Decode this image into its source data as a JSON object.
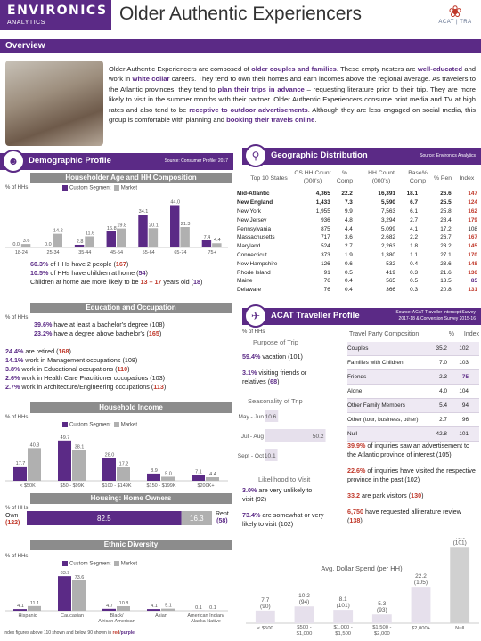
{
  "header": {
    "logo_line1": "ENVIRONICS",
    "logo_line2": "ANALYTICS",
    "title": "Older Authentic Experiencers",
    "acat_logo": "ACAT | TRA"
  },
  "overview": {
    "bar_label": "Overview",
    "text_parts": [
      {
        "t": "Older Authentic Experiencers are composed of ",
        "h": false
      },
      {
        "t": "older couples and families",
        "h": true
      },
      {
        "t": ". These empty nesters are ",
        "h": false
      },
      {
        "t": "well-educated",
        "h": true
      },
      {
        "t": " and work in ",
        "h": false
      },
      {
        "t": "white collar",
        "h": true
      },
      {
        "t": " careers. They tend to own their homes and earn incomes above the regional average. As travelers to the Atlantic provinces, they tend to ",
        "h": false
      },
      {
        "t": "plan their trips in advance",
        "h": true
      },
      {
        "t": " – requesting literature prior to their trip. They are more likely to visit in the summer months with their partner. Older Authentic Experiencers consume print media and TV at high rates and also tend to be ",
        "h": false
      },
      {
        "t": "receptive to outdoor advertisements",
        "h": true
      },
      {
        "t": ". Although they are less engaged on social media, this group is comfortable with planning and ",
        "h": false
      },
      {
        "t": "booking their travels online",
        "h": true
      },
      {
        "t": ".",
        "h": false
      }
    ]
  },
  "demographic": {
    "title": "Demographic Profile",
    "source": "Source: Consumer Profiler 2017",
    "age_head": "Householder Age and HH Composition",
    "ylabel": "% of HHs",
    "legend": [
      "Custom Segment",
      "Market"
    ],
    "hh_stats": [
      {
        "pct": "60.3%",
        "text": " of HHs have 2 people (",
        "idx": "167",
        "end": ")"
      },
      {
        "pct": "10.5%",
        "text": " of HHs have children at home (",
        "idx": "54",
        "end": ")"
      },
      {
        "pct": "",
        "text": "Children at home are more likely to be ",
        "idx": "13 – 17",
        "end": " years old (",
        "idx2": "18",
        "end2": ")"
      }
    ],
    "edu_head": "Education and Occupation",
    "edu_ylabel": "% of HHs",
    "edu_stats": [
      {
        "pct": "39.6%",
        "text": " have at least a bachelor's degree (108)"
      },
      {
        "pct": "23.2%",
        "text": " have a degree above bachelor's (",
        "idx": "165",
        "end": ")"
      }
    ],
    "occ_stats": [
      {
        "pct": "24.4%",
        "text": " are retired (",
        "idx": "168",
        "end": ")"
      },
      {
        "pct": "14.1%",
        "text": " work in Management occupations (108)"
      },
      {
        "pct": "3.8%",
        "text": " work in Educational occupations (",
        "idx": "110",
        "end": ")"
      },
      {
        "pct": "2.6%",
        "text": " work in Health Care Practitioner occupations (103)"
      },
      {
        "pct": "2.7%",
        "text": " work in Architecture/Engineering occupations (",
        "idx": "113",
        "end": ")"
      }
    ],
    "income_head": "Household Income",
    "income_ylabel": "% of HHs",
    "housing_head": "Housing: Home Owners",
    "housing_ylabel": "% of HHs",
    "own_label": "Own",
    "own_idx": "(122)",
    "rent_label": "Rent",
    "rent_idx": "(58)",
    "own_value": "82.5",
    "rent_value": "16.3",
    "ethnic_head": "Ethnic Diversity",
    "ethnic_ylabel": "% of HHs",
    "footnote": "Index figures above 110 shown and below 90 shown in ",
    "footnote_red": "red",
    "footnote_purple": "purple"
  },
  "geo": {
    "title": "Geographic Distribution",
    "source": "Source: Environics Analytics",
    "col_top": "Top 10 States",
    "col_cs": "CS HH Count (000's)",
    "col_pct": "% Comp",
    "col_hh": "HH Count (000's)",
    "col_base": "Base% Comp",
    "col_pen": "% Pen",
    "col_index": "Index",
    "rows": [
      {
        "name": "Mid-Atlantic",
        "cs": "4,365",
        "pct": "22.2",
        "hh": "16,391",
        "base": "18.1",
        "pen": "26.6",
        "index": "147",
        "bold": true
      },
      {
        "name": "New England",
        "cs": "1,433",
        "pct": "7.3",
        "hh": "5,590",
        "base": "6.7",
        "pen": "25.5",
        "index": "124",
        "bold": true
      },
      {
        "name": "New York",
        "cs": "1,955",
        "pct": "9.9",
        "hh": "7,563",
        "base": "6.1",
        "pen": "25.8",
        "index": "162",
        "bold": false
      },
      {
        "name": "New Jersey",
        "cs": "936",
        "pct": "4.8",
        "hh": "3,294",
        "base": "2.7",
        "pen": "28.4",
        "index": "179",
        "bold": false
      },
      {
        "name": "Pennsylvania",
        "cs": "875",
        "pct": "4.4",
        "hh": "5,099",
        "base": "4.1",
        "pen": "17.2",
        "index": "108",
        "bold": false
      },
      {
        "name": "Massachusetts",
        "cs": "717",
        "pct": "3.6",
        "hh": "2,682",
        "base": "2.2",
        "pen": "26.7",
        "index": "167",
        "bold": false
      },
      {
        "name": "Maryland",
        "cs": "524",
        "pct": "2.7",
        "hh": "2,263",
        "base": "1.8",
        "pen": "23.2",
        "index": "145",
        "bold": false
      },
      {
        "name": "Connecticut",
        "cs": "373",
        "pct": "1.9",
        "hh": "1,380",
        "base": "1.1",
        "pen": "27.1",
        "index": "170",
        "bold": false
      },
      {
        "name": "New Hampshire",
        "cs": "126",
        "pct": "0.6",
        "hh": "532",
        "base": "0.4",
        "pen": "23.6",
        "index": "148",
        "bold": false
      },
      {
        "name": "Rhode Island",
        "cs": "91",
        "pct": "0.5",
        "hh": "419",
        "base": "0.3",
        "pen": "21.6",
        "index": "136",
        "bold": false
      },
      {
        "name": "Maine",
        "cs": "76",
        "pct": "0.4",
        "hh": "565",
        "base": "0.5",
        "pen": "13.5",
        "index": "85",
        "bold": false
      },
      {
        "name": "Delaware",
        "cs": "76",
        "pct": "0.4",
        "hh": "366",
        "cs2": "",
        "base": "0.3",
        "pen": "20.8",
        "index": "131",
        "bold": false
      }
    ]
  },
  "acat": {
    "title": "ACAT Traveller Profile",
    "source_l1": "Source: ACAT Traveller Intercept Survey",
    "source_l2": "2017-18 & Conversion Survey 2015-16",
    "ylabel": "% of HHs",
    "purpose_head": "Purpose of Trip",
    "purpose_stats": [
      {
        "pct": "59.4%",
        "text": " vacation (101)"
      },
      {
        "pct": "3.1%",
        "text": " visiting friends or relatives (",
        "idx": "68",
        "end": ")"
      }
    ],
    "seasonality_head": "Seasonality of Trip",
    "likelihood_head": "Likelihood to Visit",
    "likelihood_stats": [
      {
        "pct": "3.0%",
        "text": " are very unlikely to visit (92)"
      },
      {
        "pct": "73.4%",
        "text": " are somewhat or very likely to visit (102)"
      }
    ],
    "party_head": "Travel Party Composition",
    "party_col_pct": "%",
    "party_col_index": "Index",
    "party_rows": [
      {
        "label": "Couples",
        "pct": "35.2",
        "index": "102",
        "color": ""
      },
      {
        "label": "Families with Children",
        "pct": "7.0",
        "index": "103",
        "color": ""
      },
      {
        "label": "Friends",
        "pct": "2.3",
        "index": "75",
        "color": "purple"
      },
      {
        "label": "Alone",
        "pct": "4.0",
        "index": "104",
        "color": ""
      },
      {
        "label": "Other Family Members",
        "pct": "5.4",
        "index": "94",
        "color": ""
      },
      {
        "label": "Other (tour, business, other)",
        "pct": "2.7",
        "index": "96",
        "color": ""
      },
      {
        "label": "Null",
        "pct": "42.8",
        "index": "101",
        "color": ""
      }
    ],
    "right_stats": [
      {
        "pct": "39.9%",
        "text": " of inquiries saw an advertisement to the Atlantic province of interest (105)"
      },
      {
        "pct": "22.6%",
        "text": " of inquiries have visited the respective province in the past (102)"
      },
      {
        "pct": "33.2",
        "text": " are park visitors (",
        "idx": "130",
        "end": ")"
      },
      {
        "pct": "6,750",
        "text": " have requested alliterature review (",
        "idx": "138",
        "end": ")"
      }
    ],
    "spend_head": "Avg. Dollar Spend (per HH)"
  },
  "chart_data": [
    {
      "type": "bar",
      "title": "Householder Age and HH Composition",
      "ylabel": "% of HHs",
      "categories": [
        "18-24",
        "25-34",
        "35-44",
        "45-54",
        "55-64",
        "65-74",
        "75+"
      ],
      "series": [
        {
          "name": "Custom Segment",
          "values": [
            0.0,
            0.0,
            2.8,
            16.8,
            34.1,
            44.0,
            7.4
          ]
        },
        {
          "name": "Market",
          "values": [
            3.6,
            14.2,
            11.6,
            19.8,
            20.1,
            21.3,
            4.4
          ]
        }
      ],
      "ylim": [
        0,
        50
      ]
    },
    {
      "type": "bar",
      "title": "Household Income",
      "ylabel": "% of HHs",
      "categories": [
        "< $50K",
        "$50 - $99K",
        "$100 - $149K",
        "$150 - $199K",
        "$200K+"
      ],
      "series": [
        {
          "name": "Custom Segment",
          "values": [
            17.7,
            49.7,
            28.0,
            8.9,
            7.1
          ]
        },
        {
          "name": "Market",
          "values": [
            40.3,
            38.1,
            17.2,
            5.0,
            4.4
          ]
        }
      ],
      "ylim": [
        0,
        55
      ]
    },
    {
      "type": "bar",
      "title": "Housing: Home Owners",
      "categories": [
        "Own",
        "Rent"
      ],
      "values": [
        82.5,
        16.3
      ]
    },
    {
      "type": "bar",
      "title": "Ethnic Diversity",
      "ylabel": "% of HHs",
      "categories": [
        "Hispanic",
        "Caucasian",
        "Black/African American",
        "Asian",
        "American Indian/Alaska Native"
      ],
      "series": [
        {
          "name": "Custom Segment",
          "values": [
            4.1,
            83.9,
            4.7,
            4.1,
            0.1
          ]
        },
        {
          "name": "Market",
          "values": [
            11.1,
            73.6,
            10.8,
            5.1,
            0.1
          ]
        }
      ],
      "ylim": [
        0,
        95
      ]
    },
    {
      "type": "bar",
      "title": "Seasonality of Trip",
      "categories": [
        "May - Jun",
        "Jul - Aug",
        "Sept - Oct"
      ],
      "values": [
        10.6,
        50.2,
        10.1
      ],
      "ylim": [
        0,
        55
      ]
    },
    {
      "type": "bar",
      "title": "Avg. Dollar Spend (per HH)",
      "categories": [
        "< $500",
        "$500 - $1,000",
        "$1,000 - $1,500",
        "$1,500 - $2,000",
        "$2,000+",
        "Null"
      ],
      "values": [
        7.7,
        10.2,
        8.1,
        5.3,
        22.2,
        46.6
      ],
      "indexes": [
        "(90)",
        "(94)",
        "(101)",
        "(93)",
        "(105)",
        "(101)"
      ],
      "ylim": [
        0,
        50
      ]
    }
  ]
}
